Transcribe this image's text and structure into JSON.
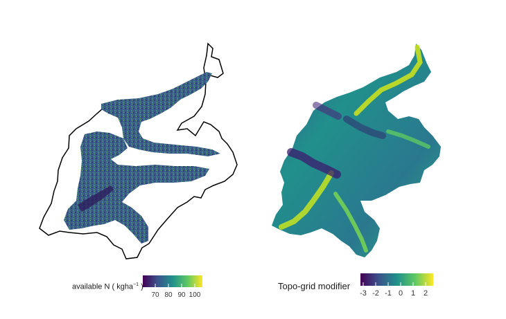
{
  "left_map": {
    "legend": {
      "title_main": "available N (",
      "title_unit": " kgha",
      "title_exp": "−1",
      "title_end": " )",
      "ticks": [
        "70",
        "80",
        "90",
        "100"
      ]
    }
  },
  "right_map": {
    "legend": {
      "title": "Topo-grid modifier",
      "ticks": [
        "-3",
        "-2",
        "-1",
        "0",
        "1",
        "2"
      ]
    }
  },
  "colors": {
    "viridis": [
      "#440154",
      "#3b528b",
      "#21908c",
      "#5dc863",
      "#fde725"
    ],
    "outline": "#000000",
    "band": "#3e5e8c"
  }
}
